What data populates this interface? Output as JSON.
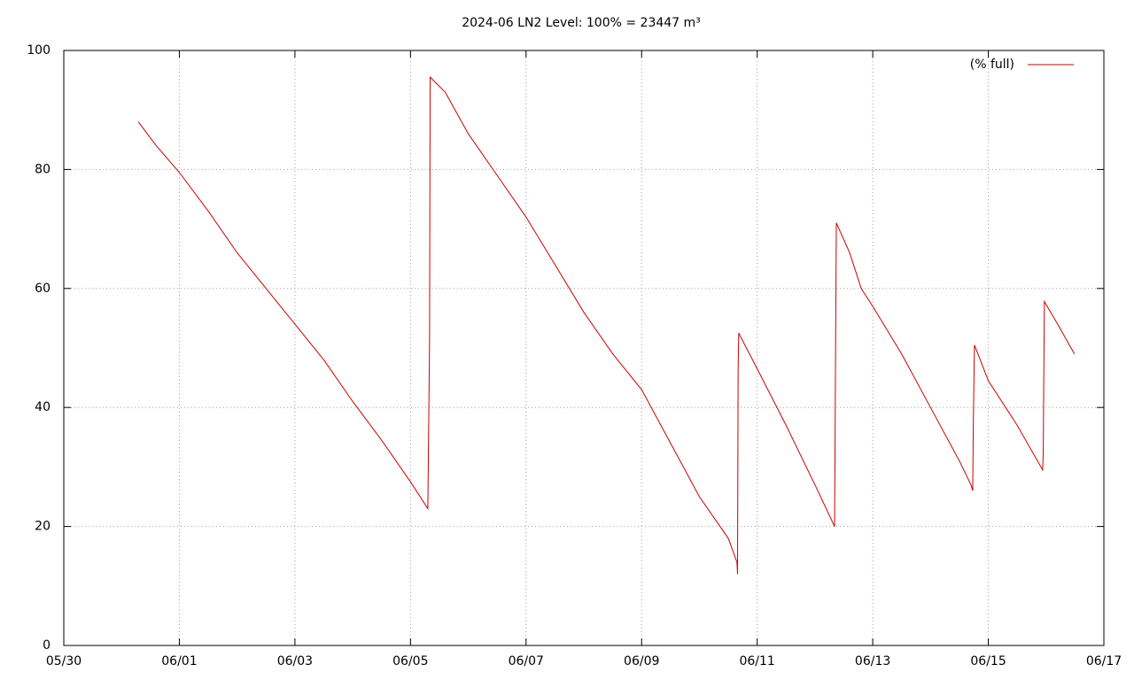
{
  "chart_data": {
    "type": "line",
    "title": "2024-06 LN2 Level: 100% = 23447 m³",
    "x": [
      1.29,
      1.6,
      2.0,
      2.5,
      3.0,
      3.5,
      4.0,
      4.5,
      5.0,
      5.5,
      6.0,
      6.3,
      6.33,
      6.34,
      6.6,
      7.0,
      7.5,
      8.0,
      8.5,
      9.0,
      9.5,
      10.0,
      10.5,
      11.0,
      11.5,
      11.65,
      11.66,
      11.67,
      11.68,
      12.0,
      12.5,
      13.0,
      13.34,
      13.36,
      13.37,
      13.6,
      13.8,
      14.0,
      14.5,
      15.0,
      15.5,
      15.7,
      15.73,
      15.74,
      15.76,
      16.0,
      16.5,
      16.94,
      16.95,
      16.97,
      17.2,
      17.49
    ],
    "series": [
      {
        "name": "(% full)",
        "color": "#cc0000",
        "values": [
          88,
          84,
          79.5,
          73,
          66,
          60,
          54,
          48,
          41,
          34.5,
          27.5,
          23,
          51,
          95.5,
          93,
          86,
          79,
          72,
          64,
          56,
          49,
          43,
          34,
          25,
          18,
          14,
          12,
          46,
          52.5,
          46.5,
          37,
          27,
          20,
          55,
          71,
          66,
          60,
          57,
          49,
          40,
          31,
          27,
          26,
          37,
          50.5,
          44.5,
          37,
          29.5,
          32,
          57.8,
          54,
          49
        ]
      }
    ],
    "xlim": [
      0,
      18
    ],
    "xticks": [
      {
        "value": 0,
        "label": "05/30"
      },
      {
        "value": 2,
        "label": "06/01"
      },
      {
        "value": 4,
        "label": "06/03"
      },
      {
        "value": 6,
        "label": "06/05"
      },
      {
        "value": 8,
        "label": "06/07"
      },
      {
        "value": 10,
        "label": "06/09"
      },
      {
        "value": 12,
        "label": "06/11"
      },
      {
        "value": 14,
        "label": "06/13"
      },
      {
        "value": 16,
        "label": "06/15"
      },
      {
        "value": 18,
        "label": "06/17"
      }
    ],
    "ylim": [
      0,
      100
    ],
    "yticks": [
      0,
      20,
      40,
      60,
      80,
      100
    ],
    "grid": true,
    "legend": "top-right"
  }
}
